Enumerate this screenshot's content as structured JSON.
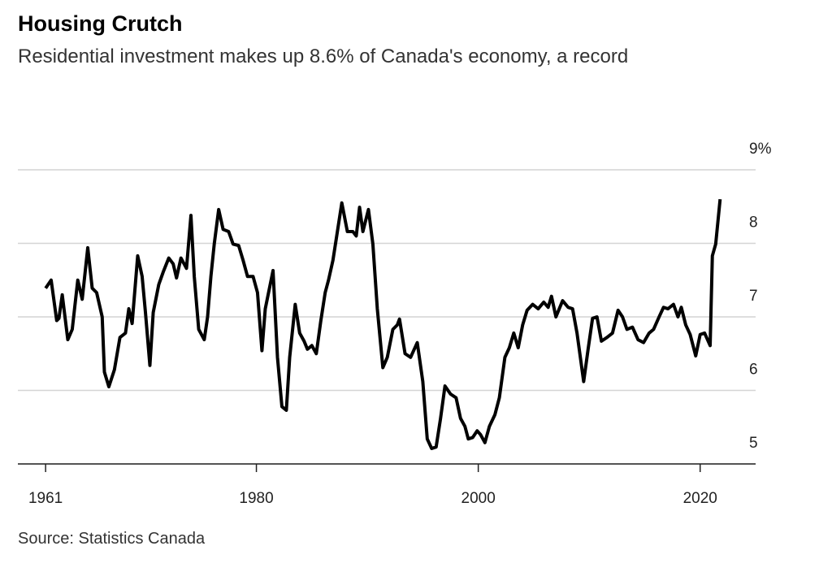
{
  "chart_data": {
    "type": "line",
    "title": "Housing Crutch",
    "subtitle": "Residential investment makes up 8.6% of Canada's economy, a record",
    "source": "Source: Statistics Canada",
    "color": "#000000",
    "x": [
      1961.0,
      1961.5,
      1962.0,
      1962.2,
      1962.5,
      1963.0,
      1963.4,
      1963.9,
      1964.3,
      1964.8,
      1965.2,
      1965.6,
      1966.1,
      1966.3,
      1966.7,
      1967.2,
      1967.7,
      1968.2,
      1968.5,
      1968.8,
      1969.3,
      1969.7,
      1970.0,
      1970.4,
      1970.7,
      1971.2,
      1971.6,
      1972.1,
      1972.5,
      1972.8,
      1973.2,
      1973.7,
      1974.1,
      1974.4,
      1974.8,
      1975.3,
      1975.6,
      1975.9,
      1976.2,
      1976.6,
      1977.0,
      1977.5,
      1977.9,
      1978.4,
      1978.8,
      1979.2,
      1979.7,
      1980.1,
      1980.5,
      1980.8,
      1981.5,
      1981.9,
      1982.3,
      1982.7,
      1983.0,
      1983.5,
      1983.9,
      1984.3,
      1984.6,
      1985.0,
      1985.4,
      1985.8,
      1986.2,
      1986.5,
      1986.9,
      1987.3,
      1987.7,
      1988.2,
      1988.7,
      1989.0,
      1989.3,
      1989.6,
      1990.1,
      1990.5,
      1990.9,
      1991.4,
      1991.8,
      1992.3,
      1992.7,
      1992.9,
      1993.4,
      1993.9,
      1994.5,
      1995.0,
      1995.4,
      1995.8,
      1996.2,
      1996.6,
      1997.0,
      1997.5,
      1998.0,
      1998.4,
      1998.8,
      1999.1,
      1999.5,
      1999.9,
      2000.2,
      2000.6,
      2001.0,
      2001.5,
      2001.9,
      2002.4,
      2002.8,
      2003.2,
      2003.6,
      2004.0,
      2004.4,
      2004.9,
      2005.4,
      2005.9,
      2006.3,
      2006.6,
      2007.0,
      2007.6,
      2008.1,
      2008.5,
      2008.9,
      2009.5,
      2009.9,
      2010.3,
      2010.7,
      2011.1,
      2011.6,
      2012.1,
      2012.6,
      2013.0,
      2013.4,
      2013.9,
      2014.4,
      2014.9,
      2015.4,
      2015.8,
      2016.3,
      2016.7,
      2017.1,
      2017.6,
      2018.0,
      2018.3,
      2018.7,
      2019.1,
      2019.6,
      2020.0,
      2020.4,
      2020.9,
      2021.1,
      2021.4,
      2021.8
    ],
    "values": [
      7.39,
      7.5,
      6.95,
      6.98,
      7.3,
      6.69,
      6.83,
      7.5,
      7.24,
      7.94,
      7.39,
      7.33,
      7.0,
      6.25,
      6.05,
      6.28,
      6.72,
      6.78,
      7.11,
      6.91,
      7.83,
      7.55,
      7.06,
      6.34,
      7.06,
      7.44,
      7.61,
      7.8,
      7.72,
      7.53,
      7.8,
      7.66,
      8.38,
      7.55,
      6.83,
      6.69,
      7.0,
      7.55,
      7.99,
      8.46,
      8.19,
      8.16,
      7.99,
      7.97,
      7.77,
      7.55,
      7.55,
      7.33,
      6.54,
      7.11,
      7.63,
      6.45,
      5.78,
      5.73,
      6.45,
      7.17,
      6.78,
      6.67,
      6.56,
      6.61,
      6.5,
      6.94,
      7.33,
      7.5,
      7.77,
      8.16,
      8.55,
      8.16,
      8.16,
      8.1,
      8.49,
      8.16,
      8.46,
      7.99,
      7.11,
      6.31,
      6.45,
      6.83,
      6.89,
      6.97,
      6.5,
      6.45,
      6.65,
      6.12,
      5.34,
      5.21,
      5.23,
      5.62,
      6.06,
      5.95,
      5.9,
      5.62,
      5.51,
      5.34,
      5.36,
      5.45,
      5.4,
      5.29,
      5.51,
      5.67,
      5.9,
      6.45,
      6.58,
      6.78,
      6.58,
      6.89,
      7.09,
      7.17,
      7.11,
      7.2,
      7.13,
      7.28,
      7.0,
      7.22,
      7.13,
      7.11,
      6.78,
      6.12,
      6.56,
      6.98,
      7.0,
      6.67,
      6.72,
      6.78,
      7.09,
      7.0,
      6.83,
      6.86,
      6.69,
      6.65,
      6.78,
      6.83,
      7.0,
      7.13,
      7.11,
      7.17,
      7.0,
      7.13,
      6.89,
      6.76,
      6.47,
      6.76,
      6.78,
      6.61,
      7.83,
      7.99,
      8.6
    ],
    "xlim": [
      1958.5,
      2025
    ],
    "xticks": [
      1961,
      1980,
      2000,
      2020
    ],
    "ylim": [
      5,
      9
    ],
    "yticks": [
      5,
      6,
      7,
      8,
      {
        "value": 9,
        "label": "9%"
      }
    ],
    "grid": true
  }
}
